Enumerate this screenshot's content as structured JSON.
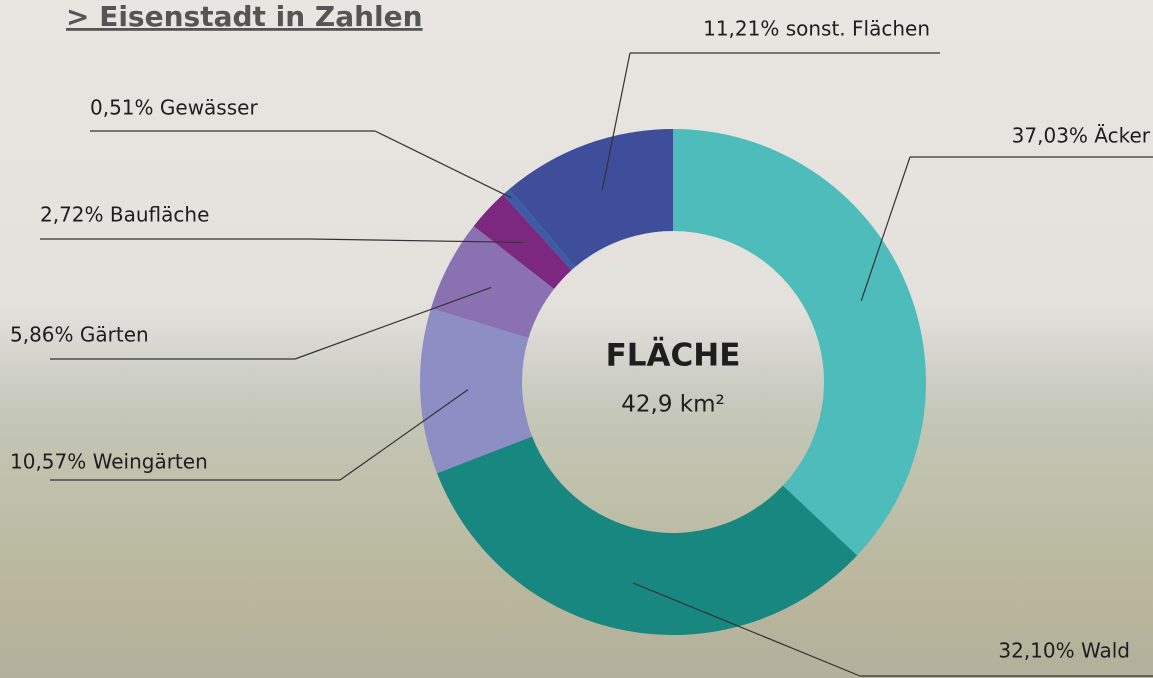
{
  "header": {
    "title": "> Eisenstadt in Zahlen"
  },
  "chart_data": {
    "type": "donut",
    "title": "FLÄCHE",
    "subtitle": "42,9 km²",
    "values": [
      37.03,
      32.1,
      10.57,
      5.86,
      2.72,
      0.51,
      11.21
    ],
    "value_labels": [
      "37,03% Äcker",
      "32,10% Wald",
      "10,57% Weingärten",
      "5,86% Gärten",
      "2,72% Baufläche",
      "0,51% Gewässer",
      "11,21% sonst. Flächen"
    ],
    "colors": [
      "#4fbcbc",
      "#178780",
      "#8c8ec4",
      "#8a72b2",
      "#7d2880",
      "#3b5ca4",
      "#3f4e9b"
    ]
  }
}
